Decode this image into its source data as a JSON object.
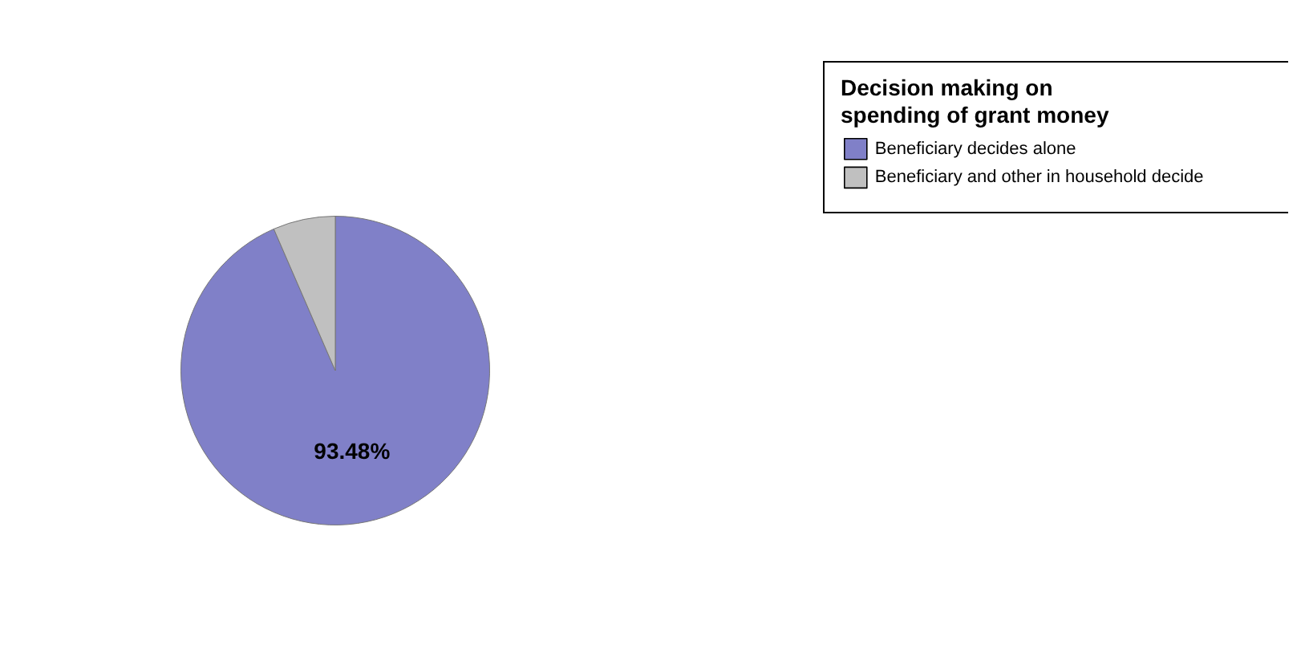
{
  "chart_data": {
    "type": "pie",
    "legend_title": "Decision making on spending of grant money",
    "legend": "top right",
    "categories": [
      "Beneficiary decides alone",
      "Beneficiary and other in household decide"
    ],
    "values": [
      93.48,
      6.52
    ],
    "colors": [
      "#8080c8",
      "#c0c0c0"
    ],
    "value_labels": [
      "93.48%",
      null
    ]
  }
}
